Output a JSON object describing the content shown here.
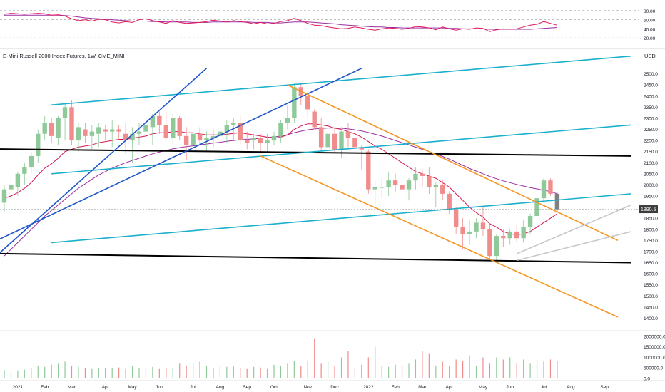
{
  "header": {
    "title": "E-Mini Russell 2000 Index Futures, 1W, CME_MINI",
    "currency": "USD"
  },
  "price_badge": "1890.5",
  "colors": {
    "up": "#8fc99a",
    "down": "#f08c8c",
    "neutral": "#808080",
    "ma_fast": "#d01850",
    "ma_slow": "#9b2fa0",
    "channel_cyan": "#1ab0cc",
    "trend_blue": "#1e56c8",
    "channel_orange": "#f59624",
    "support_black": "#000000",
    "wedge_gray": "#c8c8c8",
    "rsi_line": "#e0195a",
    "rsi_ma": "#9b2fa0"
  },
  "rsi_panel": {
    "ticks": [
      "80.00",
      "60.00",
      "40.00",
      "20.00"
    ],
    "levels": [
      80,
      60,
      40,
      20
    ]
  },
  "volume_panel": {
    "ticks": [
      "2000000.0",
      "1500000.0",
      "1000000.0",
      "500000.0",
      "0.0"
    ]
  },
  "chart_data": {
    "type": "candlestick",
    "interval": "1W",
    "ylim": [
      1350,
      2550
    ],
    "y_ticks": [
      "2500.0",
      "2450.0",
      "2400.0",
      "2350.0",
      "2300.0",
      "2250.0",
      "2200.0",
      "2150.0",
      "2100.0",
      "2050.0",
      "2000.0",
      "1950.0",
      "1900.0",
      "1850.0",
      "1800.0",
      "1750.0",
      "1700.0",
      "1650.0",
      "1600.0",
      "1550.0",
      "1500.0",
      "1450.0",
      "1400.0"
    ],
    "x_labels": [
      {
        "label": "2021",
        "week": 2
      },
      {
        "label": "Feb",
        "week": 6
      },
      {
        "label": "Mar",
        "week": 10
      },
      {
        "label": "Apr",
        "week": 15
      },
      {
        "label": "May",
        "week": 19
      },
      {
        "label": "Jun",
        "week": 23
      },
      {
        "label": "Jul",
        "week": 28
      },
      {
        "label": "Aug",
        "week": 32
      },
      {
        "label": "Sep",
        "week": 36
      },
      {
        "label": "Oct",
        "week": 40
      },
      {
        "label": "Nov",
        "week": 45
      },
      {
        "label": "Dec",
        "week": 49
      },
      {
        "label": "2022",
        "week": 54
      },
      {
        "label": "Feb",
        "week": 58
      },
      {
        "label": "Mar",
        "week": 62
      },
      {
        "label": "Apr",
        "week": 66
      },
      {
        "label": "May",
        "week": 71
      },
      {
        "label": "Jun",
        "week": 75
      },
      {
        "label": "Jul",
        "week": 80
      },
      {
        "label": "Aug",
        "week": 84
      },
      {
        "label": "Sep",
        "week": 89
      }
    ],
    "ohlc": [
      [
        1920,
        2000,
        1880,
        1980
      ],
      [
        1980,
        2040,
        1930,
        2000
      ],
      [
        1990,
        2060,
        1950,
        2050
      ],
      [
        2050,
        2100,
        2000,
        2080
      ],
      [
        2080,
        2150,
        2050,
        2130
      ],
      [
        2130,
        2250,
        2100,
        2230
      ],
      [
        2230,
        2310,
        2200,
        2280
      ],
      [
        2280,
        2300,
        2190,
        2220
      ],
      [
        2210,
        2310,
        2180,
        2300
      ],
      [
        2300,
        2370,
        2200,
        2350
      ],
      [
        2350,
        2380,
        2180,
        2200
      ],
      [
        2200,
        2280,
        2150,
        2260
      ],
      [
        2250,
        2280,
        2190,
        2220
      ],
      [
        2220,
        2270,
        2160,
        2240
      ],
      [
        2230,
        2280,
        2170,
        2260
      ],
      [
        2250,
        2270,
        2200,
        2240
      ],
      [
        2240,
        2290,
        2170,
        2250
      ],
      [
        2250,
        2270,
        2200,
        2240
      ],
      [
        2230,
        2280,
        2140,
        2200
      ],
      [
        2200,
        2260,
        2100,
        2230
      ],
      [
        2230,
        2280,
        2180,
        2240
      ],
      [
        2240,
        2300,
        2200,
        2270
      ],
      [
        2260,
        2320,
        2180,
        2310
      ],
      [
        2310,
        2330,
        2230,
        2270
      ],
      [
        2270,
        2330,
        2200,
        2210
      ],
      [
        2210,
        2320,
        2180,
        2300
      ],
      [
        2300,
        2310,
        2200,
        2220
      ],
      [
        2220,
        2260,
        2110,
        2180
      ],
      [
        2180,
        2250,
        2120,
        2230
      ],
      [
        2230,
        2260,
        2180,
        2200
      ],
      [
        2200,
        2240,
        2150,
        2210
      ],
      [
        2210,
        2250,
        2170,
        2220
      ],
      [
        2220,
        2270,
        2170,
        2240
      ],
      [
        2240,
        2290,
        2190,
        2270
      ],
      [
        2270,
        2300,
        2200,
        2280
      ],
      [
        2280,
        2310,
        2180,
        2200
      ],
      [
        2200,
        2240,
        2160,
        2190
      ],
      [
        2200,
        2230,
        2160,
        2210
      ],
      [
        2210,
        2230,
        2140,
        2190
      ],
      [
        2190,
        2230,
        2150,
        2200
      ],
      [
        2200,
        2240,
        2180,
        2220
      ],
      [
        2220,
        2290,
        2190,
        2280
      ],
      [
        2280,
        2360,
        2250,
        2300
      ],
      [
        2300,
        2460,
        2280,
        2440
      ],
      [
        2440,
        2460,
        2360,
        2400
      ],
      [
        2400,
        2420,
        2300,
        2340
      ],
      [
        2330,
        2340,
        2250,
        2260
      ],
      [
        2260,
        2300,
        2150,
        2170
      ],
      [
        2170,
        2250,
        2120,
        2230
      ],
      [
        2230,
        2260,
        2140,
        2160
      ],
      [
        2160,
        2260,
        2120,
        2240
      ],
      [
        2240,
        2280,
        2170,
        2210
      ],
      [
        2210,
        2240,
        2150,
        2170
      ],
      [
        2170,
        2180,
        2070,
        2160
      ],
      [
        2150,
        2160,
        1960,
        1980
      ],
      [
        1980,
        2020,
        1910,
        1990
      ],
      [
        1990,
        2030,
        1940,
        1990
      ],
      [
        1990,
        2060,
        1950,
        2020
      ],
      [
        2020,
        2050,
        1970,
        2000
      ],
      [
        2000,
        2020,
        1940,
        1980
      ],
      [
        1980,
        2030,
        1930,
        2020
      ],
      [
        2020,
        2080,
        1980,
        2050
      ],
      [
        2050,
        2070,
        1990,
        2040
      ],
      [
        2040,
        2080,
        1960,
        1990
      ],
      [
        1990,
        2010,
        1900,
        2000
      ],
      [
        2000,
        2020,
        1930,
        1960
      ],
      [
        1960,
        1970,
        1870,
        1890
      ],
      [
        1890,
        1900,
        1780,
        1810
      ],
      [
        1810,
        1850,
        1710,
        1780
      ],
      [
        1780,
        1840,
        1730,
        1790
      ],
      [
        1790,
        1850,
        1760,
        1830
      ],
      [
        1830,
        1900,
        1770,
        1800
      ],
      [
        1800,
        1820,
        1660,
        1680
      ],
      [
        1680,
        1780,
        1660,
        1770
      ],
      [
        1770,
        1800,
        1720,
        1760
      ],
      [
        1760,
        1800,
        1730,
        1790
      ],
      [
        1790,
        1820,
        1740,
        1760
      ],
      [
        1760,
        1840,
        1740,
        1810
      ],
      [
        1810,
        1870,
        1780,
        1860
      ],
      [
        1860,
        1950,
        1840,
        1940
      ],
      [
        1940,
        2030,
        1920,
        2020
      ],
      [
        2020,
        2030,
        1950,
        1960
      ],
      [
        1960,
        1970,
        1880,
        1890
      ]
    ],
    "series": [
      {
        "name": "MA fast",
        "values": [
          1940,
          1950,
          1965,
          1985,
          2010,
          2045,
          2075,
          2095,
          2120,
          2150,
          2160,
          2170,
          2175,
          2180,
          2190,
          2195,
          2200,
          2205,
          2205,
          2210,
          2215,
          2220,
          2230,
          2235,
          2235,
          2240,
          2240,
          2235,
          2235,
          2230,
          2225,
          2225,
          2225,
          2228,
          2232,
          2235,
          2230,
          2225,
          2220,
          2215,
          2210,
          2215,
          2225,
          2250,
          2265,
          2275,
          2275,
          2270,
          2265,
          2255,
          2250,
          2240,
          2230,
          2215,
          2195,
          2175,
          2160,
          2140,
          2120,
          2100,
          2080,
          2060,
          2050,
          2040,
          2030,
          2010,
          1990,
          1960,
          1930,
          1900,
          1875,
          1855,
          1825,
          1810,
          1790,
          1780,
          1775,
          1780,
          1790,
          1810,
          1830,
          1850,
          1870
        ]
      },
      {
        "name": "MA slow",
        "values": [
          1680,
          1710,
          1740,
          1770,
          1800,
          1830,
          1860,
          1885,
          1910,
          1935,
          1960,
          1985,
          2005,
          2025,
          2045,
          2060,
          2075,
          2088,
          2100,
          2110,
          2120,
          2130,
          2140,
          2148,
          2155,
          2162,
          2168,
          2172,
          2176,
          2180,
          2184,
          2188,
          2192,
          2196,
          2200,
          2203,
          2205,
          2207,
          2210,
          2213,
          2216,
          2220,
          2226,
          2235,
          2242,
          2248,
          2252,
          2254,
          2256,
          2256,
          2255,
          2252,
          2248,
          2243,
          2236,
          2228,
          2220,
          2210,
          2200,
          2190,
          2180,
          2170,
          2160,
          2150,
          2140,
          2128,
          2116,
          2102,
          2088,
          2074,
          2062,
          2050,
          2038,
          2028,
          2018,
          2010,
          2002,
          1995,
          1988,
          1982,
          1976,
          1970,
          1960
        ]
      },
      {
        "name": "RSI",
        "values": [
          72,
          74,
          73,
          72,
          73,
          74,
          73,
          70,
          71,
          68,
          62,
          58,
          60,
          57,
          61,
          60,
          55,
          53,
          56,
          54,
          60,
          62,
          58,
          55,
          52,
          58,
          54,
          52,
          53,
          54,
          56,
          59,
          57,
          55,
          58,
          56,
          54,
          51,
          54,
          51,
          52,
          56,
          58,
          63,
          58,
          52,
          48,
          47,
          44,
          42,
          40,
          41,
          44,
          42,
          39,
          37,
          40,
          42,
          41,
          39,
          41,
          45,
          44,
          42,
          38,
          44,
          40,
          37,
          40,
          39,
          42,
          41,
          34,
          38,
          40,
          39,
          40,
          44,
          48,
          50,
          56,
          52,
          48
        ]
      },
      {
        "name": "RSI MA",
        "values": [
          70,
          70,
          70,
          70,
          70,
          70,
          70,
          70,
          70,
          69,
          68,
          66,
          64,
          63,
          62,
          61,
          60,
          59,
          58,
          57,
          57,
          57,
          56,
          56,
          55,
          55,
          55,
          55,
          54,
          54,
          54,
          55,
          55,
          55,
          55,
          55,
          55,
          54,
          54,
          54,
          53,
          53,
          54,
          55,
          55,
          55,
          54,
          53,
          52,
          51,
          49,
          48,
          47,
          46,
          45,
          44,
          44,
          43,
          43,
          42,
          42,
          42,
          42,
          42,
          42,
          42,
          41,
          41,
          40,
          40,
          40,
          40,
          39,
          39,
          39,
          39,
          39,
          39,
          39,
          40,
          41,
          42,
          43
        ]
      },
      {
        "name": "Volume",
        "values": [
          400000,
          350000,
          380000,
          420000,
          500000,
          600000,
          550000,
          650000,
          700000,
          800000,
          600000,
          550000,
          500000,
          450000,
          480000,
          500000,
          480000,
          520000,
          450000,
          600000,
          480000,
          500000,
          550000,
          450000,
          520000,
          500000,
          700000,
          620000,
          700000,
          800000,
          600000,
          480000,
          620000,
          550000,
          600000,
          500000,
          450000,
          550000,
          520000,
          450000,
          650000,
          600000,
          700000,
          850000,
          600000,
          850000,
          1900000,
          700000,
          800000,
          600000,
          1000000,
          1300000,
          500000,
          650000,
          1000000,
          1500000,
          600000,
          550000,
          650000,
          600000,
          700000,
          900000,
          1300000,
          1200000,
          600000,
          800000,
          600000,
          900000,
          850000,
          1100000,
          600000,
          1000000,
          700000,
          1000000,
          900000,
          1000000,
          700000,
          900000,
          700000,
          900000,
          800000,
          900000,
          850000
        ]
      }
    ],
    "drawings": [
      {
        "name": "support-black-upper",
        "points": [
          [
            -6,
            2163
          ],
          [
            93,
            2130
          ]
        ]
      },
      {
        "name": "support-black-lower",
        "points": [
          [
            -6,
            1693
          ],
          [
            93,
            1650
          ]
        ]
      },
      {
        "name": "cyan-channel-upper",
        "points": [
          [
            7,
            2360
          ],
          [
            93,
            2580
          ]
        ]
      },
      {
        "name": "cyan-channel-middle",
        "points": [
          [
            7,
            2050
          ],
          [
            93,
            2270
          ]
        ]
      },
      {
        "name": "cyan-channel-lower",
        "points": [
          [
            7,
            1740
          ],
          [
            93,
            1960
          ]
        ]
      },
      {
        "name": "blue-trend-1",
        "points": [
          [
            -6,
            1550
          ],
          [
            30,
            2525
          ]
        ]
      },
      {
        "name": "blue-trend-2",
        "points": [
          [
            -6,
            1680
          ],
          [
            53,
            2525
          ]
        ]
      },
      {
        "name": "orange-channel-upper",
        "points": [
          [
            42,
            2450
          ],
          [
            91,
            1750
          ]
        ]
      },
      {
        "name": "orange-channel-lower",
        "points": [
          [
            38,
            2130
          ],
          [
            91,
            1405
          ]
        ]
      },
      {
        "name": "gray-wedge-upper",
        "points": [
          [
            76,
            1690
          ],
          [
            93,
            1910
          ]
        ]
      },
      {
        "name": "gray-wedge-lower",
        "points": [
          [
            76,
            1660
          ],
          [
            93,
            1790
          ]
        ]
      }
    ]
  }
}
